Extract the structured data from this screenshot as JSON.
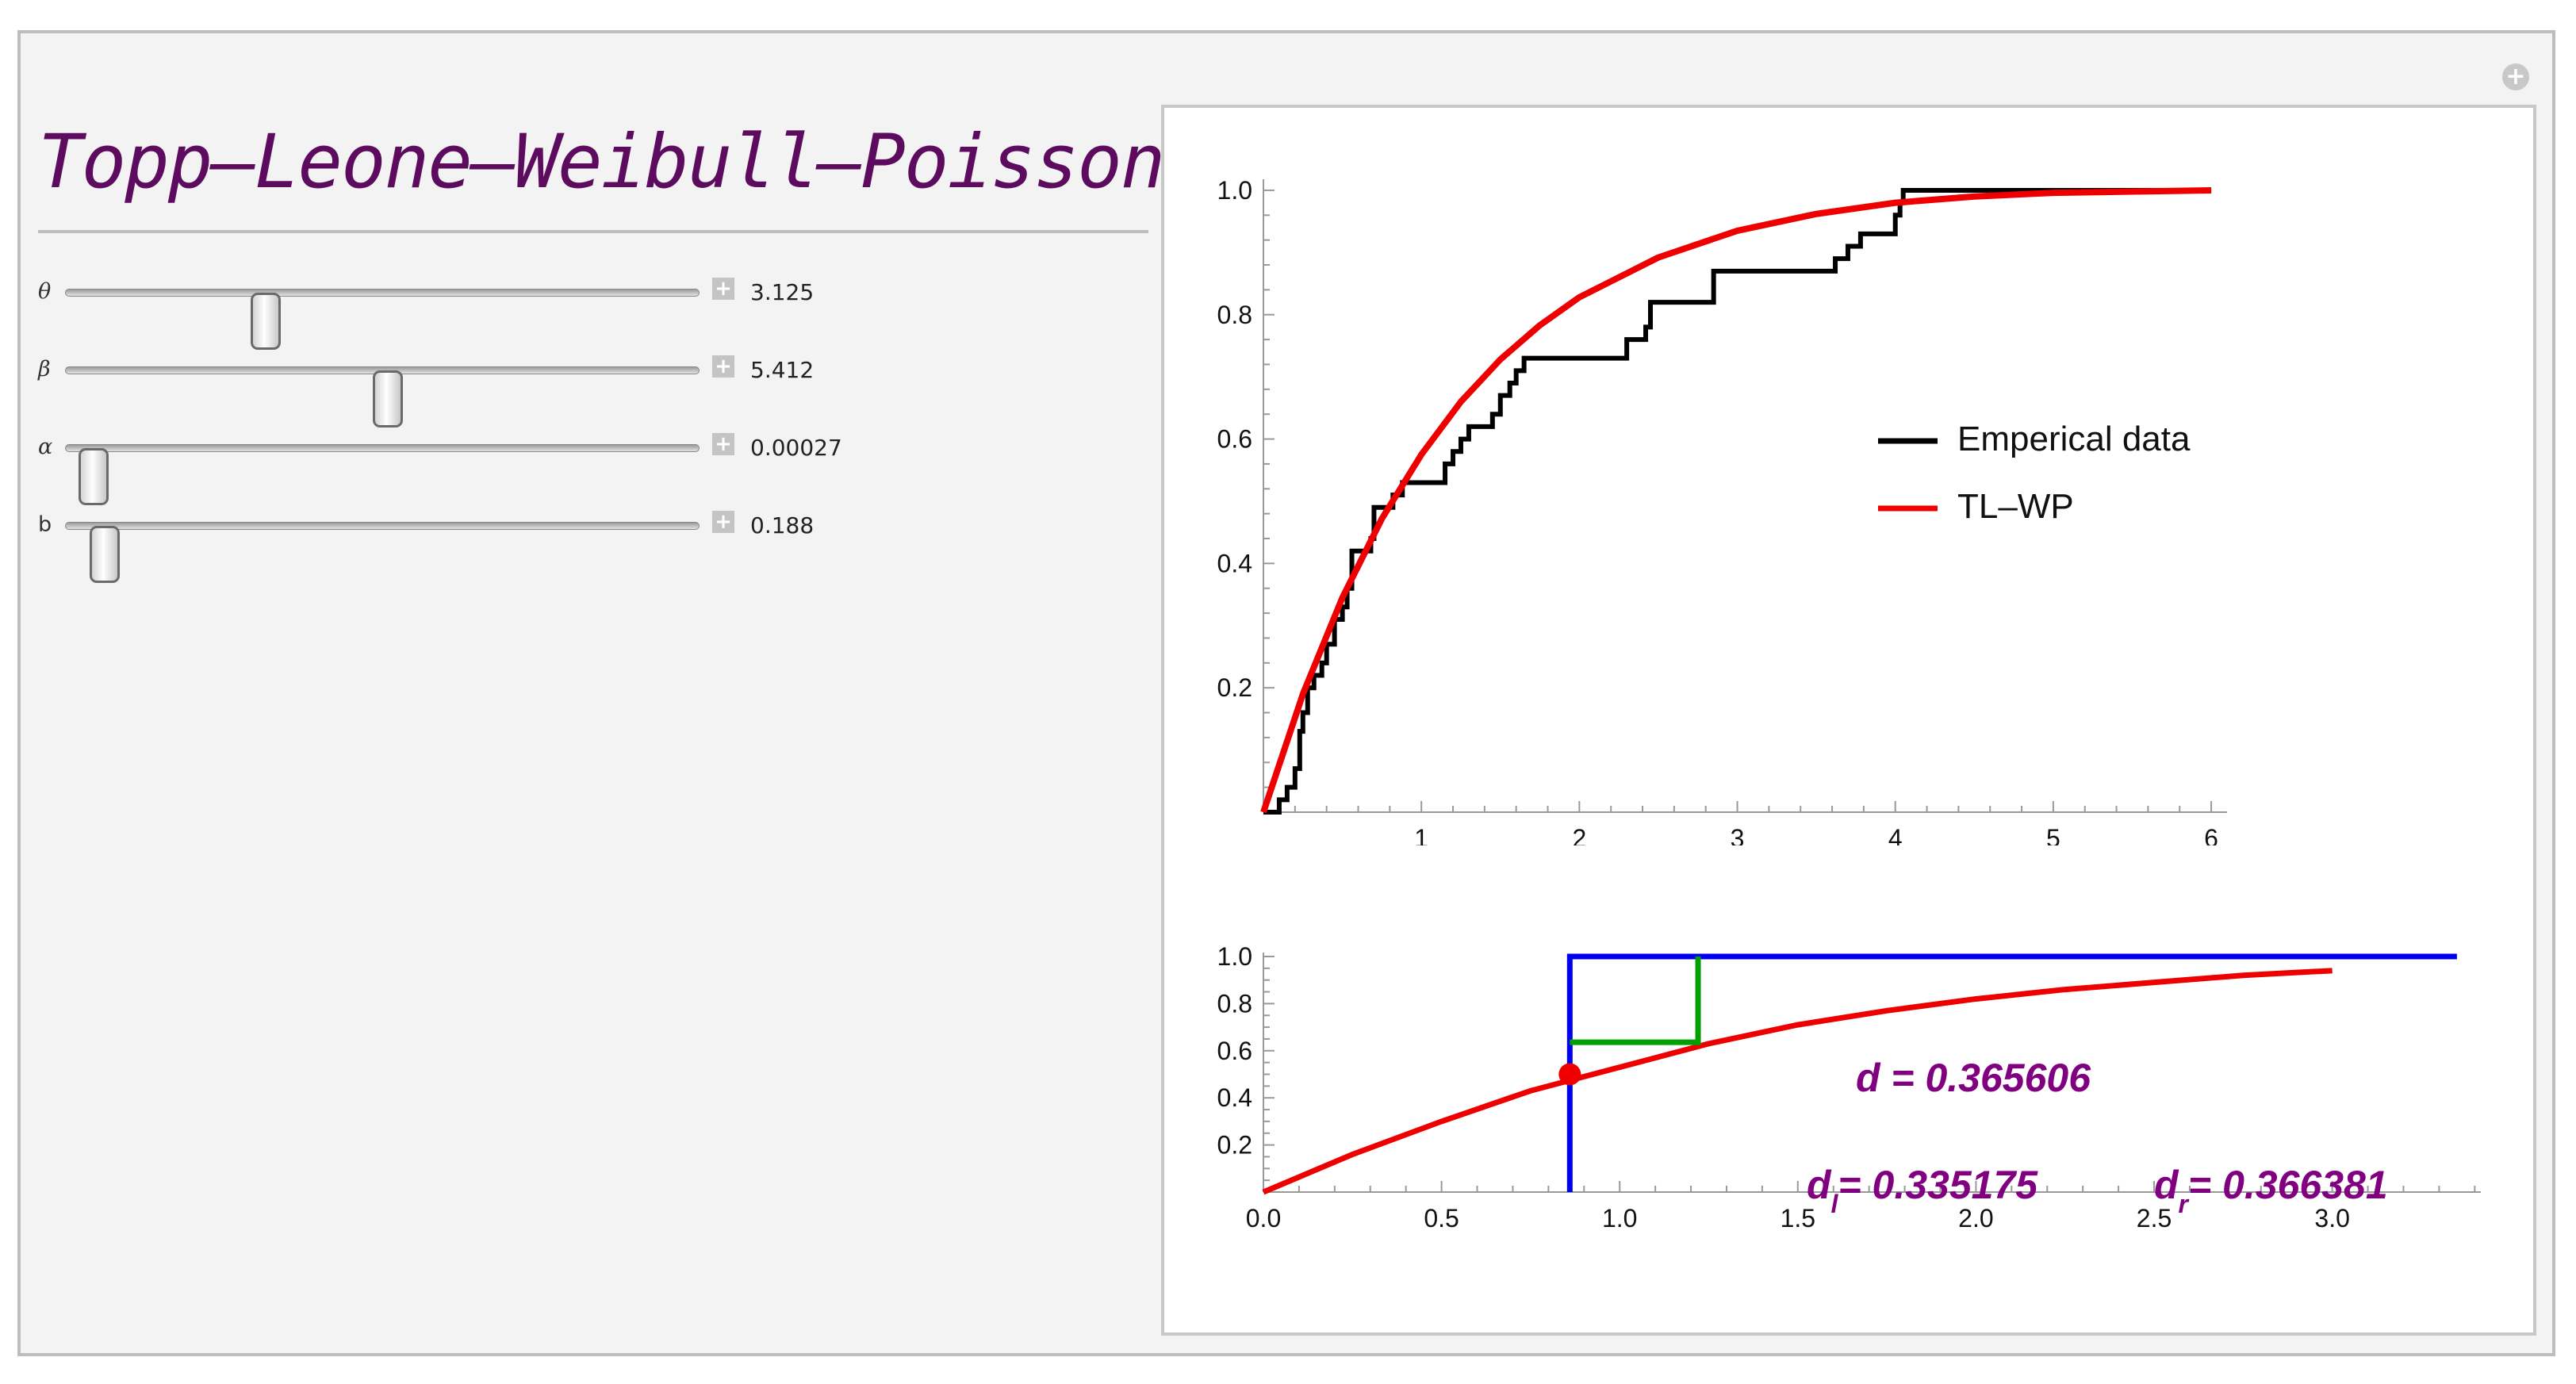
{
  "app": {
    "title": "Topp–Leone–Weibull–Poisson",
    "corner_button": "+"
  },
  "controls": [
    {
      "label": "θ",
      "value": "3.125",
      "fraction": 0.31
    },
    {
      "label": "β",
      "value": "5.412",
      "fraction": 0.53
    },
    {
      "label": "α",
      "value": "0.00027",
      "fraction": 0.0
    },
    {
      "label": "b",
      "value": "0.188",
      "fraction": 0.02
    }
  ],
  "colors": {
    "title": "#5c0b5e",
    "empirical": "#000000",
    "model": "#ee0000",
    "blue": "#0000ee",
    "green": "#00a000",
    "annotation": "#800080"
  },
  "chart_data": [
    {
      "type": "line",
      "xlim": [
        0,
        6.1
      ],
      "ylim": [
        0,
        1.0
      ],
      "xticks": [
        "1",
        "2",
        "3",
        "4",
        "5",
        "6"
      ],
      "yticks": [
        "0.2",
        "0.4",
        "0.6",
        "0.8",
        "1.0"
      ],
      "legend_position": "right-middle",
      "series": [
        {
          "name": "Emperical data",
          "style": "step",
          "points": [
            [
              0,
              0
            ],
            [
              0.1,
              0.02
            ],
            [
              0.15,
              0.04
            ],
            [
              0.2,
              0.07
            ],
            [
              0.23,
              0.13
            ],
            [
              0.25,
              0.16
            ],
            [
              0.28,
              0.2
            ],
            [
              0.32,
              0.22
            ],
            [
              0.37,
              0.24
            ],
            [
              0.4,
              0.27
            ],
            [
              0.45,
              0.31
            ],
            [
              0.5,
              0.33
            ],
            [
              0.53,
              0.36
            ],
            [
              0.56,
              0.42
            ],
            [
              0.68,
              0.44
            ],
            [
              0.7,
              0.47
            ],
            [
              0.7,
              0.49
            ],
            [
              0.82,
              0.51
            ],
            [
              0.88,
              0.53
            ],
            [
              1.05,
              0.53
            ],
            [
              1.15,
              0.56
            ],
            [
              1.2,
              0.58
            ],
            [
              1.25,
              0.6
            ],
            [
              1.3,
              0.62
            ],
            [
              1.45,
              0.64
            ],
            [
              1.5,
              0.67
            ],
            [
              1.56,
              0.69
            ],
            [
              1.6,
              0.71
            ],
            [
              1.65,
              0.73
            ],
            [
              2.2,
              0.73
            ],
            [
              2.3,
              0.76
            ],
            [
              2.42,
              0.78
            ],
            [
              2.45,
              0.82
            ],
            [
              2.85,
              0.87
            ],
            [
              3.55,
              0.87
            ],
            [
              3.62,
              0.89
            ],
            [
              3.7,
              0.91
            ],
            [
              3.78,
              0.93
            ],
            [
              4.0,
              0.96
            ],
            [
              4.03,
              0.98
            ],
            [
              4.05,
              1.0
            ],
            [
              6.0,
              1.0
            ]
          ]
        },
        {
          "name": "TL–WP",
          "style": "line",
          "points": [
            [
              0,
              0
            ],
            [
              0.25,
              0.19
            ],
            [
              0.5,
              0.345
            ],
            [
              0.75,
              0.472
            ],
            [
              1.0,
              0.575
            ],
            [
              1.25,
              0.66
            ],
            [
              1.5,
              0.728
            ],
            [
              1.75,
              0.783
            ],
            [
              2.0,
              0.828
            ],
            [
              2.5,
              0.892
            ],
            [
              3.0,
              0.935
            ],
            [
              3.5,
              0.962
            ],
            [
              4.0,
              0.98
            ],
            [
              4.5,
              0.99
            ],
            [
              5.0,
              0.996
            ],
            [
              6.0,
              1.0
            ]
          ]
        }
      ]
    },
    {
      "type": "line",
      "xlim": [
        0,
        3.4
      ],
      "ylim": [
        0,
        1.0
      ],
      "xticks": [
        "0.0",
        "0.5",
        "1.0",
        "1.5",
        "2.0",
        "2.5",
        "3.0"
      ],
      "yticks": [
        "0.2",
        "0.4",
        "0.6",
        "0.8",
        "1.0"
      ],
      "series": [
        {
          "name": "",
          "color": "red",
          "points": [
            [
              0,
              0
            ],
            [
              0.25,
              0.16
            ],
            [
              0.5,
              0.3
            ],
            [
              0.75,
              0.43
            ],
            [
              1.0,
              0.53
            ],
            [
              1.25,
              0.63
            ],
            [
              1.5,
              0.71
            ],
            [
              1.75,
              0.77
            ],
            [
              2.0,
              0.82
            ],
            [
              2.25,
              0.86
            ],
            [
              2.5,
              0.89
            ],
            [
              2.75,
              0.92
            ],
            [
              3.0,
              0.94
            ]
          ]
        },
        {
          "name": "",
          "color": "blue",
          "points": [
            [
              0.86,
              0
            ],
            [
              0.86,
              1.0
            ],
            [
              3.35,
              1.0
            ]
          ]
        },
        {
          "name": "",
          "color": "green",
          "points": [
            [
              0.86,
              0.636
            ],
            [
              1.22,
              0.636
            ],
            [
              1.22,
              1.0
            ]
          ]
        }
      ],
      "marker": {
        "x": 0.86,
        "y": 0.5
      },
      "annotations": {
        "d": "d = 0.365606",
        "dl_sym": "d",
        "dl_sub": "l",
        "dl_val": "= 0.335175",
        "dr_sym": "d",
        "dr_sub": "r",
        "dr_val": "= 0.366381"
      }
    }
  ]
}
